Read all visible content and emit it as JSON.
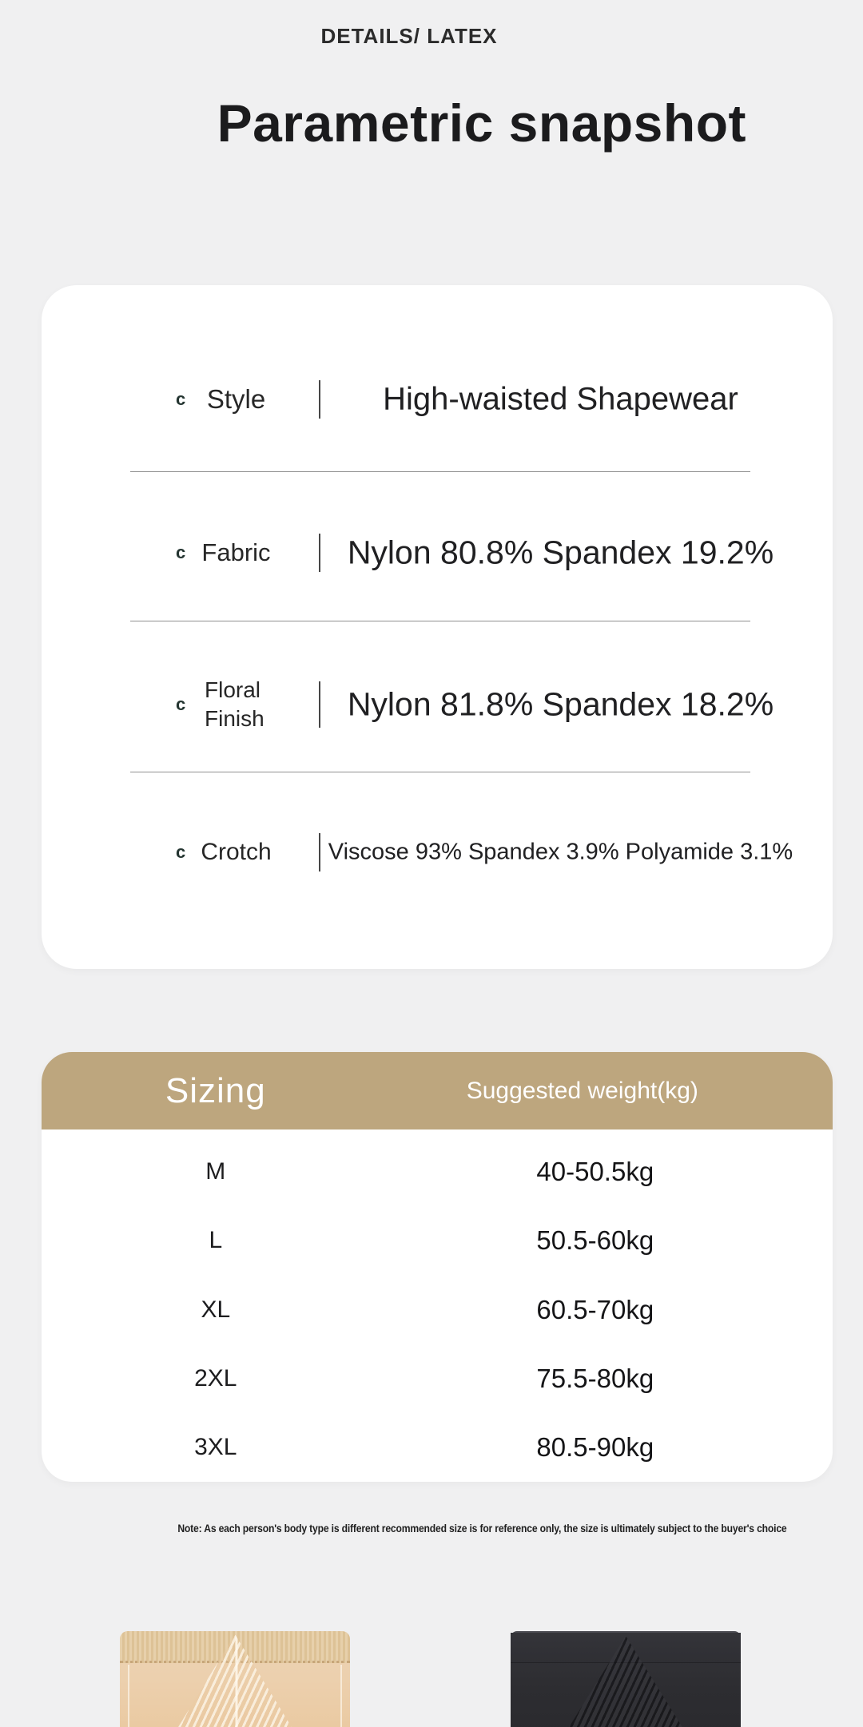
{
  "header": {
    "eyebrow": "DETAILS/ LATEX",
    "title": "Parametric snapshot"
  },
  "specs": {
    "bullet_glyph": "c",
    "bullet_icon": "crescent-icon",
    "rows": [
      {
        "label": "Style",
        "value": "High-waisted Shapewear"
      },
      {
        "label": "Fabric",
        "value": "Nylon 80.8% Spandex 19.2%"
      },
      {
        "label": "Floral Finish",
        "label_lines": [
          "Floral",
          "Finish"
        ],
        "value": "Nylon 81.8% Spandex 18.2%"
      },
      {
        "label": "Crotch",
        "value": "Viscose 93% Spandex 3.9% Polyamide 3.1%"
      }
    ]
  },
  "sizing": {
    "header": {
      "size_label": "Sizing",
      "weight_label": "Suggested weight(kg)"
    },
    "rows": [
      {
        "size": "M",
        "weight": "40-50.5kg"
      },
      {
        "size": "L",
        "weight": "50.5-60kg"
      },
      {
        "size": "XL",
        "weight": "60.5-70kg"
      },
      {
        "size": "2XL",
        "weight": "75.5-80kg"
      },
      {
        "size": "3XL",
        "weight": "80.5-90kg"
      }
    ]
  },
  "note": "Note: As each person's body type is different recommended size is for reference only, the size is ultimately subject to the buyer's choice",
  "products": [
    {
      "colorway": "beige",
      "color": "#ecd0ae"
    },
    {
      "colorway": "black",
      "color": "#2d2d31"
    }
  ],
  "colors": {
    "page_bg": "#f0f0f1",
    "card_bg": "#ffffff",
    "header_bg": "#bda67e",
    "header_text": "#ffffff",
    "text": "#1f1f21"
  }
}
